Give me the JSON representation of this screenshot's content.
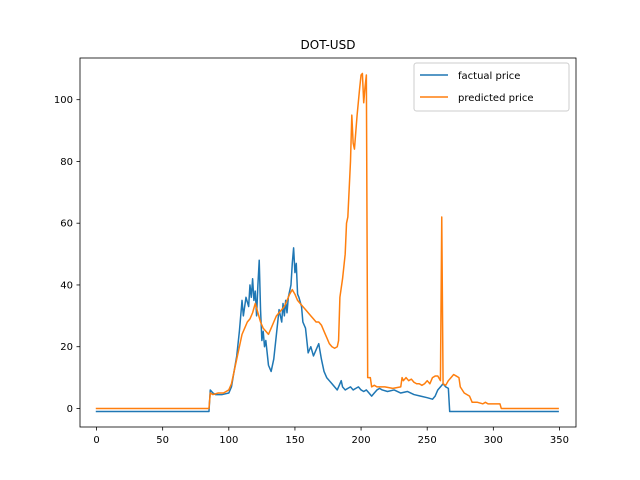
{
  "chart_data": {
    "type": "line",
    "title": "DOT-USD",
    "xlabel": "",
    "ylabel": "",
    "xlim": [
      -12.5,
      362.5
    ],
    "ylim": [
      -6,
      113.5
    ],
    "xticks": [
      0,
      50,
      100,
      150,
      200,
      250,
      300,
      350
    ],
    "yticks": [
      0,
      20,
      40,
      60,
      80,
      100
    ],
    "grid": false,
    "legend_position": "top-right",
    "series": [
      {
        "name": "factual price",
        "color": "#1f77b4",
        "points": [
          [
            0,
            -1
          ],
          [
            85,
            -1
          ],
          [
            86,
            6
          ],
          [
            88,
            5
          ],
          [
            90,
            4.5
          ],
          [
            95,
            4.5
          ],
          [
            100,
            5
          ],
          [
            102,
            7
          ],
          [
            104,
            12
          ],
          [
            106,
            17
          ],
          [
            108,
            25
          ],
          [
            110,
            35
          ],
          [
            111,
            30
          ],
          [
            113,
            36
          ],
          [
            115,
            33
          ],
          [
            116,
            40
          ],
          [
            117,
            36
          ],
          [
            118,
            42
          ],
          [
            119,
            35
          ],
          [
            120,
            38
          ],
          [
            121,
            30
          ],
          [
            122,
            40
          ],
          [
            123,
            48
          ],
          [
            124,
            32
          ],
          [
            125,
            22
          ],
          [
            126,
            25
          ],
          [
            127,
            20
          ],
          [
            128,
            22
          ],
          [
            129,
            18
          ],
          [
            130,
            14
          ],
          [
            132,
            12
          ],
          [
            134,
            16
          ],
          [
            136,
            24
          ],
          [
            138,
            32
          ],
          [
            140,
            28
          ],
          [
            141,
            34
          ],
          [
            142,
            30
          ],
          [
            143,
            35
          ],
          [
            144,
            31
          ],
          [
            145,
            36
          ],
          [
            147,
            40
          ],
          [
            148,
            47
          ],
          [
            149,
            52
          ],
          [
            150,
            44
          ],
          [
            151,
            47
          ],
          [
            152,
            37
          ],
          [
            153,
            36
          ],
          [
            155,
            33
          ],
          [
            156,
            28
          ],
          [
            158,
            26
          ],
          [
            160,
            18
          ],
          [
            162,
            20
          ],
          [
            164,
            17
          ],
          [
            166,
            19
          ],
          [
            168,
            21
          ],
          [
            170,
            16
          ],
          [
            172,
            12
          ],
          [
            174,
            10
          ],
          [
            176,
            9
          ],
          [
            178,
            8
          ],
          [
            180,
            7
          ],
          [
            182,
            6
          ],
          [
            184,
            8
          ],
          [
            185,
            9
          ],
          [
            186,
            7
          ],
          [
            188,
            6
          ],
          [
            190,
            6.5
          ],
          [
            192,
            7
          ],
          [
            194,
            6
          ],
          [
            196,
            6.5
          ],
          [
            198,
            7
          ],
          [
            200,
            6
          ],
          [
            202,
            5.5
          ],
          [
            204,
            6
          ],
          [
            206,
            5
          ],
          [
            208,
            4
          ],
          [
            210,
            5
          ],
          [
            212,
            6
          ],
          [
            214,
            6.5
          ],
          [
            216,
            6
          ],
          [
            220,
            5.5
          ],
          [
            225,
            6
          ],
          [
            230,
            5
          ],
          [
            235,
            5.5
          ],
          [
            240,
            4.5
          ],
          [
            245,
            4
          ],
          [
            250,
            3.5
          ],
          [
            254,
            3
          ],
          [
            256,
            4
          ],
          [
            258,
            6
          ],
          [
            260,
            7
          ],
          [
            262,
            8
          ],
          [
            264,
            7
          ],
          [
            266,
            6.5
          ],
          [
            267,
            -1
          ],
          [
            349,
            -1
          ]
        ]
      },
      {
        "name": "predicted price",
        "color": "#ff7f0e",
        "points": [
          [
            0,
            0
          ],
          [
            85,
            0
          ],
          [
            86,
            5
          ],
          [
            88,
            4.5
          ],
          [
            92,
            5
          ],
          [
            96,
            5
          ],
          [
            100,
            6
          ],
          [
            102,
            8
          ],
          [
            104,
            12
          ],
          [
            106,
            16
          ],
          [
            108,
            20
          ],
          [
            110,
            24
          ],
          [
            112,
            26
          ],
          [
            114,
            28
          ],
          [
            116,
            29
          ],
          [
            118,
            31
          ],
          [
            120,
            34
          ],
          [
            122,
            31
          ],
          [
            124,
            28
          ],
          [
            126,
            26
          ],
          [
            128,
            25
          ],
          [
            130,
            24
          ],
          [
            132,
            26
          ],
          [
            134,
            28
          ],
          [
            136,
            30
          ],
          [
            138,
            31
          ],
          [
            140,
            32
          ],
          [
            142,
            33
          ],
          [
            144,
            35
          ],
          [
            146,
            37
          ],
          [
            148,
            38.5
          ],
          [
            150,
            37
          ],
          [
            152,
            35
          ],
          [
            154,
            34
          ],
          [
            156,
            33
          ],
          [
            158,
            32
          ],
          [
            160,
            31
          ],
          [
            162,
            30
          ],
          [
            164,
            29
          ],
          [
            166,
            28
          ],
          [
            168,
            28
          ],
          [
            170,
            27
          ],
          [
            172,
            25
          ],
          [
            174,
            23
          ],
          [
            176,
            21
          ],
          [
            178,
            20
          ],
          [
            180,
            19.5
          ],
          [
            182,
            20
          ],
          [
            183,
            22
          ],
          [
            184,
            36
          ],
          [
            186,
            42
          ],
          [
            188,
            50
          ],
          [
            189,
            60
          ],
          [
            190,
            62
          ],
          [
            192,
            80
          ],
          [
            193,
            95
          ],
          [
            194,
            86
          ],
          [
            195,
            84
          ],
          [
            197,
            95
          ],
          [
            199,
            104
          ],
          [
            200,
            108
          ],
          [
            201,
            108.5
          ],
          [
            202,
            99
          ],
          [
            203,
            104
          ],
          [
            204,
            108
          ],
          [
            205,
            10
          ],
          [
            207,
            10
          ],
          [
            208,
            7
          ],
          [
            210,
            7.5
          ],
          [
            212,
            7
          ],
          [
            218,
            7
          ],
          [
            224,
            6.5
          ],
          [
            230,
            7
          ],
          [
            231,
            10
          ],
          [
            232,
            9
          ],
          [
            234,
            10
          ],
          [
            236,
            9
          ],
          [
            238,
            9.5
          ],
          [
            240,
            8.5
          ],
          [
            242,
            8
          ],
          [
            244,
            8
          ],
          [
            246,
            7.5
          ],
          [
            248,
            8
          ],
          [
            250,
            9
          ],
          [
            252,
            8
          ],
          [
            254,
            10
          ],
          [
            256,
            10.5
          ],
          [
            258,
            10.5
          ],
          [
            260,
            9
          ],
          [
            261,
            62
          ],
          [
            262,
            8
          ],
          [
            264,
            7.5
          ],
          [
            266,
            9
          ],
          [
            268,
            10
          ],
          [
            270,
            11
          ],
          [
            272,
            10.5
          ],
          [
            274,
            10
          ],
          [
            275,
            7
          ],
          [
            278,
            5
          ],
          [
            282,
            4
          ],
          [
            284,
            2
          ],
          [
            288,
            2
          ],
          [
            292,
            1.5
          ],
          [
            294,
            2
          ],
          [
            296,
            1.5
          ],
          [
            305,
            1.5
          ],
          [
            306,
            0
          ],
          [
            349,
            0
          ]
        ]
      }
    ]
  }
}
